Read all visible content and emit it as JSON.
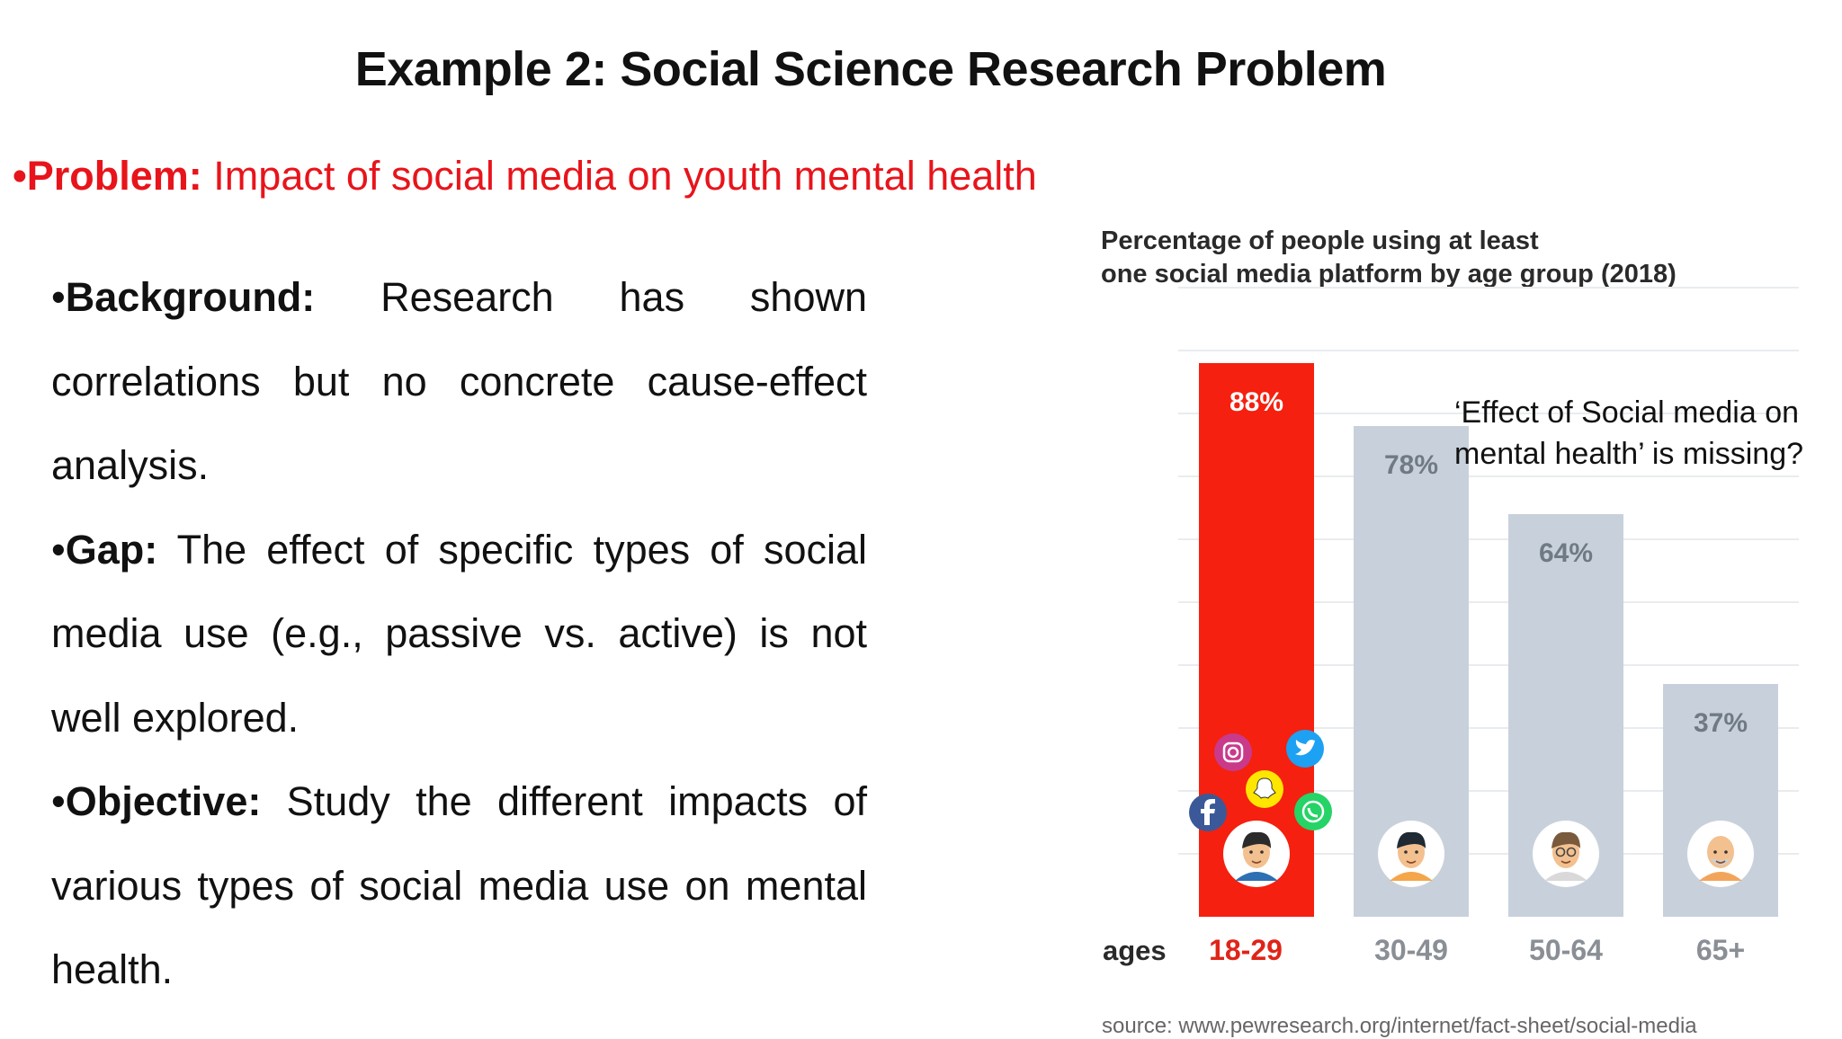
{
  "slide": {
    "title": "Example 2: Social Science Research Problem",
    "problem": {
      "bullet": "•",
      "label": "Problem:",
      "text": " Impact of social media on youth mental health"
    },
    "background": {
      "bullet": "•",
      "label": "Background:",
      "text": " Research has shown correlations but no concrete cause-effect analysis."
    },
    "gap": {
      "bullet": "•",
      "label": "Gap:",
      "text": " The effect of specific types of social media use (e.g., passive vs. active) is not well explored."
    },
    "objective": {
      "bullet": "•",
      "label": "Objective:",
      "text": " Study the different impacts of various types of social media use on mental health."
    }
  },
  "annotation": {
    "line1": "‘Effect of Social media on",
    "line2": "mental health’ is missing?"
  },
  "chart_data": {
    "type": "bar",
    "title_line1": "Percentage of people using at least",
    "title_line2": "one social media platform by age group (2018)",
    "xlabel": "ages",
    "ylabel": "",
    "categories": [
      "18-29",
      "30-49",
      "50-64",
      "65+"
    ],
    "values": [
      88,
      78,
      64,
      37
    ],
    "value_labels": [
      "88%",
      "78%",
      "64%",
      "37%"
    ],
    "ylim": [
      0,
      100
    ],
    "grid": true,
    "highlight_index": 0,
    "source": "source: www.pewresearch.org/internet/fact-sheet/social-media",
    "colors": {
      "highlight": "#f5200f",
      "bar": "#c8d1db",
      "highlight_label": "#e02418",
      "bar_label": "#6f7a85",
      "tick_label": "#8a8f96",
      "grid": "#e9ecef"
    },
    "icons": [
      "instagram-icon",
      "twitter-icon",
      "snapchat-icon",
      "facebook-icon",
      "whatsapp-icon"
    ],
    "avatars": [
      "young-adult-avatar",
      "adult-avatar",
      "middle-aged-avatar",
      "senior-avatar"
    ]
  }
}
